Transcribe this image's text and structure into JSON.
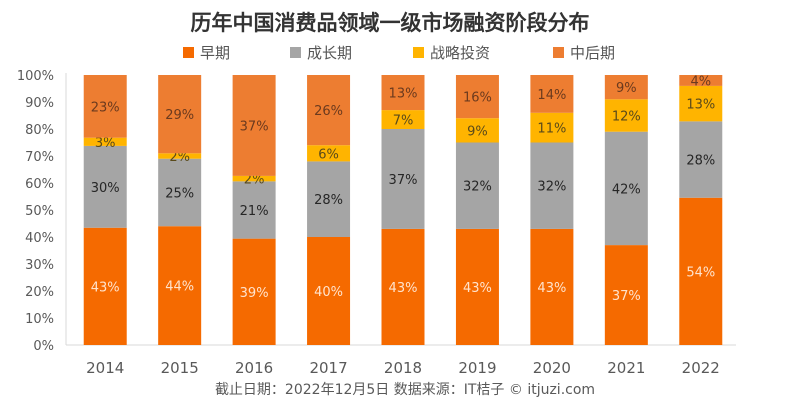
{
  "chart_data": {
    "type": "bar",
    "stacked": true,
    "percent_stacked": true,
    "title": "历年中国消费品领域一级市场融资阶段分布",
    "xlabel": "",
    "ylabel": "",
    "ylim": [
      0,
      100
    ],
    "y_ticks": [
      "0%",
      "10%",
      "20%",
      "30%",
      "40%",
      "50%",
      "60%",
      "70%",
      "80%",
      "90%",
      "100%"
    ],
    "grid": false,
    "legend_position": "top",
    "categories": [
      "2014",
      "2015",
      "2016",
      "2017",
      "2018",
      "2019",
      "2020",
      "2021",
      "2022"
    ],
    "series": [
      {
        "name": "早期",
        "color": "#F56A00",
        "label_color": "#FFE3CC",
        "values": [
          43,
          44,
          39,
          40,
          43,
          43,
          43,
          37,
          54
        ]
      },
      {
        "name": "成长期",
        "color": "#A5A5A5",
        "label_color": "#262626",
        "values": [
          30,
          25,
          21,
          28,
          37,
          32,
          32,
          42,
          28
        ]
      },
      {
        "name": "战略投资",
        "color": "#FFB400",
        "label_color": "#5A4A1A",
        "values": [
          3,
          2,
          2,
          6,
          7,
          9,
          11,
          12,
          13
        ]
      },
      {
        "name": "中后期",
        "color": "#ED7D31",
        "label_color": "#6B3A1E",
        "values": [
          23,
          29,
          37,
          26,
          13,
          16,
          14,
          9,
          4
        ]
      }
    ],
    "footer": "截止日期：2022年12月5日    数据来源：IT桔子 © itjuzi.com"
  }
}
